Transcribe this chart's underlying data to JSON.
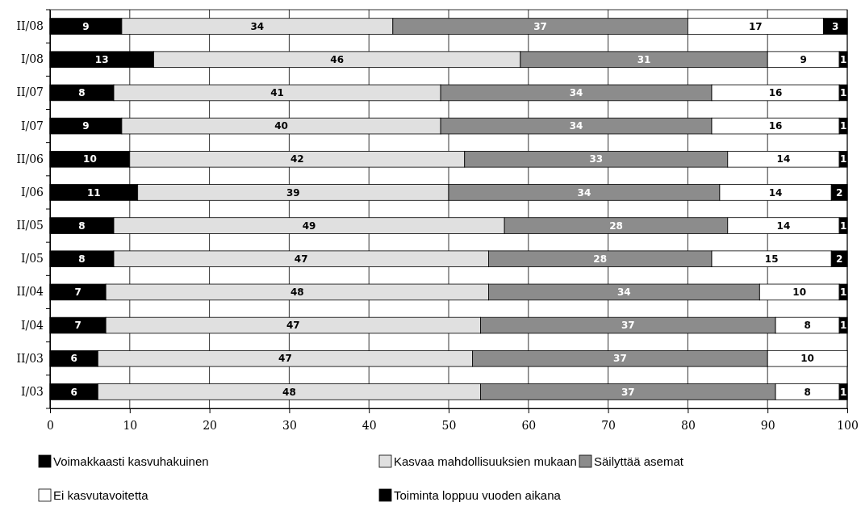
{
  "chart_data": {
    "type": "bar",
    "orientation": "horizontal",
    "stacked": true,
    "categories": [
      "II/08",
      "I/08",
      "II/07",
      "I/07",
      "II/06",
      "I/06",
      "II/05",
      "I/05",
      "II/04",
      "I/04",
      "II/03",
      "I/03"
    ],
    "series": [
      {
        "name": "Voimakkaasti kasvuhakuinen",
        "color": "#000000",
        "values": [
          9,
          13,
          8,
          9,
          10,
          11,
          8,
          8,
          7,
          7,
          6,
          6
        ]
      },
      {
        "name": "Kasvaa mahdollisuuksien mukaan",
        "color": "#e0e0e0",
        "values": [
          34,
          46,
          41,
          40,
          42,
          39,
          49,
          47,
          48,
          47,
          47,
          48
        ]
      },
      {
        "name": "Säilyttää asemat",
        "color": "#8c8c8c",
        "values": [
          37,
          31,
          34,
          34,
          33,
          34,
          28,
          28,
          34,
          37,
          37,
          37
        ]
      },
      {
        "name": "Ei kasvutavoitetta",
        "color": "#ffffff",
        "values": [
          17,
          9,
          16,
          16,
          14,
          14,
          14,
          15,
          10,
          8,
          10,
          8
        ]
      },
      {
        "name": "Toiminta loppuu vuoden aikana",
        "color": "#000000",
        "values": [
          3,
          1,
          1,
          1,
          1,
          2,
          1,
          2,
          1,
          1,
          null,
          1
        ]
      }
    ],
    "xlim": [
      0,
      100
    ],
    "xticks": [
      0,
      10,
      20,
      30,
      40,
      50,
      60,
      70,
      80,
      90,
      100
    ],
    "grid": "x",
    "legend": "bottom",
    "data_labels": true
  }
}
